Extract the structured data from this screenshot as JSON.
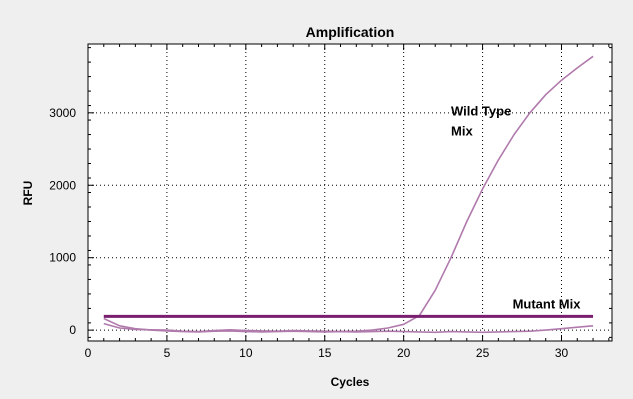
{
  "chart_data": {
    "type": "line",
    "title": "Amplification",
    "xlabel": "Cycles",
    "ylabel": "RFU",
    "xlim": [
      0,
      33.2
    ],
    "ylim": [
      -150,
      3950
    ],
    "xticks": [
      0,
      5,
      10,
      15,
      20,
      25,
      30
    ],
    "yticks": [
      0,
      1000,
      2000,
      3000
    ],
    "grid": true,
    "threshold": {
      "value": 190,
      "x": [
        1,
        32
      ],
      "color": "#7a1f70"
    },
    "series": [
      {
        "label": "Wild Type\nMix",
        "color": "#b07aac",
        "x": [
          1,
          2,
          3,
          4,
          5,
          6,
          7,
          8,
          9,
          10,
          11,
          12,
          13,
          14,
          15,
          16,
          17,
          18,
          19,
          20,
          21,
          22,
          23,
          24,
          25,
          26,
          27,
          28,
          29,
          30,
          31,
          32
        ],
        "y": [
          90,
          30,
          10,
          5,
          0,
          -15,
          -20,
          -5,
          5,
          -5,
          -10,
          -15,
          -5,
          -10,
          -15,
          -20,
          -15,
          0,
          30,
          80,
          200,
          550,
          1000,
          1500,
          1950,
          2350,
          2700,
          3000,
          3250,
          3450,
          3620,
          3780
        ]
      },
      {
        "label": "Mutant Mix",
        "color": "#b07aac",
        "x": [
          1,
          2,
          3,
          4,
          5,
          6,
          7,
          8,
          9,
          10,
          11,
          12,
          13,
          14,
          15,
          16,
          17,
          18,
          19,
          20,
          21,
          22,
          23,
          24,
          25,
          26,
          27,
          28,
          29,
          30,
          31,
          32
        ],
        "y": [
          160,
          60,
          20,
          0,
          -10,
          -20,
          -25,
          -15,
          -10,
          -20,
          -25,
          -20,
          -15,
          -20,
          -25,
          -20,
          -25,
          -20,
          -15,
          -20,
          -25,
          -30,
          -20,
          -25,
          -30,
          -25,
          -20,
          -15,
          0,
          20,
          40,
          60
        ]
      }
    ]
  }
}
